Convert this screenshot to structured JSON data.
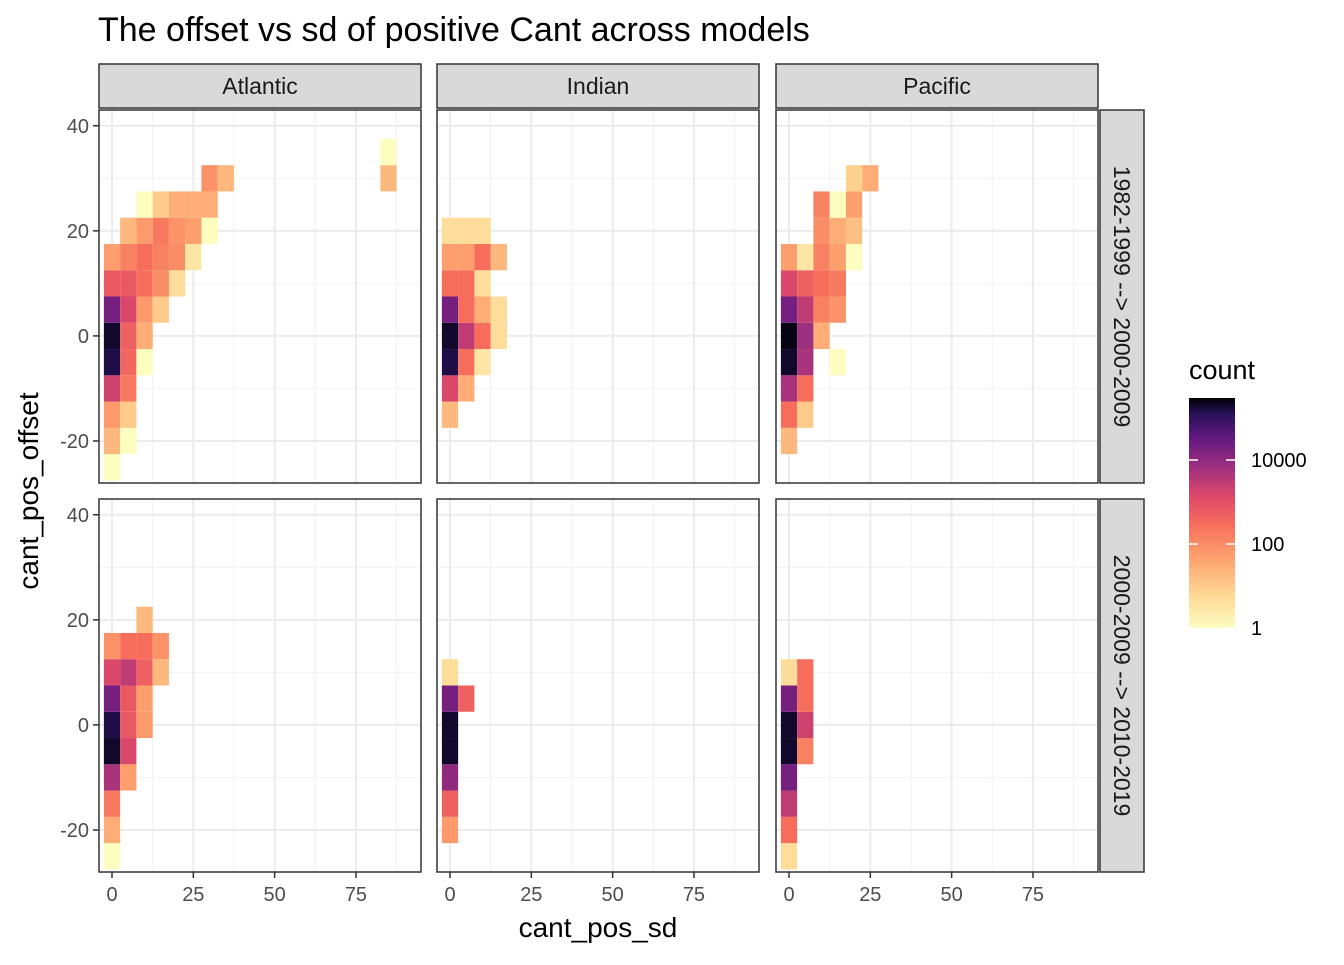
{
  "chart_data": {
    "type": "heatmap",
    "title": "The offset vs sd of positive Cant across models",
    "xlabel": "cant_pos_sd",
    "ylabel": "cant_pos_offset",
    "xlim": [
      -4,
      95
    ],
    "ylim": [
      -28,
      43
    ],
    "x_ticks": [
      0,
      25,
      50,
      75
    ],
    "x_tick_labels": [
      "0",
      "25",
      "50",
      "75"
    ],
    "y_ticks": [
      -20,
      0,
      20,
      40
    ],
    "y_tick_labels": [
      "-20",
      "0",
      "20",
      "40"
    ],
    "grid": true,
    "bin_width": {
      "x": 5,
      "y": 5
    },
    "columns": [
      "Atlantic",
      "Indian",
      "Pacific"
    ],
    "rows": [
      "1982-1999 --> 2000-2009",
      "2000-2009 --> 2010-2019"
    ],
    "legend": {
      "title": "count",
      "position": "right",
      "scale": "log10",
      "domain": [
        1,
        300000
      ],
      "breaks": [
        1,
        100,
        10000
      ],
      "break_labels": [
        "1",
        "100",
        "10000"
      ]
    },
    "panels": [
      {
        "column": "Atlantic",
        "row": "1982-1999 --> 2000-2009",
        "cells": [
          {
            "x": 0,
            "y": -25,
            "count": 1
          },
          {
            "x": 0,
            "y": -20,
            "count": 20
          },
          {
            "x": 0,
            "y": -15,
            "count": 60
          },
          {
            "x": 0,
            "y": -10,
            "count": 2000
          },
          {
            "x": 0,
            "y": -5,
            "count": 150000
          },
          {
            "x": 0,
            "y": 0,
            "count": 200000
          },
          {
            "x": 0,
            "y": 5,
            "count": 20000
          },
          {
            "x": 0,
            "y": 10,
            "count": 700
          },
          {
            "x": 0,
            "y": 15,
            "count": 50
          },
          {
            "x": 5,
            "y": -20,
            "count": 1
          },
          {
            "x": 5,
            "y": -15,
            "count": 10
          },
          {
            "x": 5,
            "y": -10,
            "count": 200
          },
          {
            "x": 5,
            "y": -5,
            "count": 400
          },
          {
            "x": 5,
            "y": 0,
            "count": 500
          },
          {
            "x": 5,
            "y": 5,
            "count": 1500
          },
          {
            "x": 5,
            "y": 10,
            "count": 700
          },
          {
            "x": 5,
            "y": 15,
            "count": 150
          },
          {
            "x": 5,
            "y": 20,
            "count": 20
          },
          {
            "x": 10,
            "y": -5,
            "count": 1
          },
          {
            "x": 10,
            "y": 0,
            "count": 30
          },
          {
            "x": 10,
            "y": 5,
            "count": 60
          },
          {
            "x": 10,
            "y": 10,
            "count": 300
          },
          {
            "x": 10,
            "y": 15,
            "count": 300
          },
          {
            "x": 10,
            "y": 20,
            "count": 60
          },
          {
            "x": 10,
            "y": 25,
            "count": 1
          },
          {
            "x": 15,
            "y": 5,
            "count": 10
          },
          {
            "x": 15,
            "y": 10,
            "count": 100
          },
          {
            "x": 15,
            "y": 15,
            "count": 150
          },
          {
            "x": 15,
            "y": 20,
            "count": 200
          },
          {
            "x": 15,
            "y": 25,
            "count": 10
          },
          {
            "x": 20,
            "y": 10,
            "count": 5
          },
          {
            "x": 20,
            "y": 15,
            "count": 100
          },
          {
            "x": 20,
            "y": 20,
            "count": 80
          },
          {
            "x": 20,
            "y": 25,
            "count": 30
          },
          {
            "x": 25,
            "y": 15,
            "count": 3
          },
          {
            "x": 25,
            "y": 20,
            "count": 50
          },
          {
            "x": 25,
            "y": 25,
            "count": 30
          },
          {
            "x": 30,
            "y": 20,
            "count": 1
          },
          {
            "x": 30,
            "y": 25,
            "count": 30
          },
          {
            "x": 30,
            "y": 30,
            "count": 80
          },
          {
            "x": 35,
            "y": 30,
            "count": 20
          },
          {
            "x": 85,
            "y": 30,
            "count": 20
          },
          {
            "x": 85,
            "y": 35,
            "count": 1
          }
        ]
      },
      {
        "column": "Indian",
        "row": "1982-1999 --> 2000-2009",
        "cells": [
          {
            "x": 0,
            "y": -15,
            "count": 20
          },
          {
            "x": 0,
            "y": -10,
            "count": 1500
          },
          {
            "x": 0,
            "y": -5,
            "count": 150000
          },
          {
            "x": 0,
            "y": 0,
            "count": 200000
          },
          {
            "x": 0,
            "y": 5,
            "count": 20000
          },
          {
            "x": 0,
            "y": 10,
            "count": 300
          },
          {
            "x": 0,
            "y": 15,
            "count": 50
          },
          {
            "x": 0,
            "y": 20,
            "count": 5
          },
          {
            "x": 5,
            "y": -10,
            "count": 30
          },
          {
            "x": 5,
            "y": -5,
            "count": 300
          },
          {
            "x": 5,
            "y": 0,
            "count": 3000
          },
          {
            "x": 5,
            "y": 5,
            "count": 300
          },
          {
            "x": 5,
            "y": 10,
            "count": 300
          },
          {
            "x": 5,
            "y": 15,
            "count": 50
          },
          {
            "x": 5,
            "y": 20,
            "count": 5
          },
          {
            "x": 10,
            "y": -5,
            "count": 3
          },
          {
            "x": 10,
            "y": 0,
            "count": 300
          },
          {
            "x": 10,
            "y": 5,
            "count": 30
          },
          {
            "x": 10,
            "y": 10,
            "count": 5
          },
          {
            "x": 10,
            "y": 15,
            "count": 300
          },
          {
            "x": 10,
            "y": 20,
            "count": 5
          },
          {
            "x": 15,
            "y": 0,
            "count": 5
          },
          {
            "x": 15,
            "y": 5,
            "count": 5
          },
          {
            "x": 15,
            "y": 15,
            "count": 20
          }
        ]
      },
      {
        "column": "Pacific",
        "row": "1982-1999 --> 2000-2009",
        "cells": [
          {
            "x": 0,
            "y": -20,
            "count": 20
          },
          {
            "x": 0,
            "y": -15,
            "count": 300
          },
          {
            "x": 0,
            "y": -10,
            "count": 5000
          },
          {
            "x": 0,
            "y": -5,
            "count": 200000
          },
          {
            "x": 0,
            "y": 0,
            "count": 250000
          },
          {
            "x": 0,
            "y": 5,
            "count": 20000
          },
          {
            "x": 0,
            "y": 10,
            "count": 1500
          },
          {
            "x": 0,
            "y": 15,
            "count": 50
          },
          {
            "x": 5,
            "y": -15,
            "count": 10
          },
          {
            "x": 5,
            "y": -10,
            "count": 300
          },
          {
            "x": 5,
            "y": -5,
            "count": 5000
          },
          {
            "x": 5,
            "y": 0,
            "count": 7000
          },
          {
            "x": 5,
            "y": 5,
            "count": 3000
          },
          {
            "x": 5,
            "y": 10,
            "count": 500
          },
          {
            "x": 5,
            "y": 15,
            "count": 3
          },
          {
            "x": 10,
            "y": 0,
            "count": 30
          },
          {
            "x": 10,
            "y": 5,
            "count": 150
          },
          {
            "x": 10,
            "y": 10,
            "count": 300
          },
          {
            "x": 10,
            "y": 15,
            "count": 150
          },
          {
            "x": 10,
            "y": 20,
            "count": 100
          },
          {
            "x": 10,
            "y": 25,
            "count": 150
          },
          {
            "x": 15,
            "y": -5,
            "count": 1
          },
          {
            "x": 15,
            "y": 5,
            "count": 80
          },
          {
            "x": 15,
            "y": 10,
            "count": 200
          },
          {
            "x": 15,
            "y": 15,
            "count": 50
          },
          {
            "x": 15,
            "y": 20,
            "count": 30
          },
          {
            "x": 15,
            "y": 25,
            "count": 1
          },
          {
            "x": 20,
            "y": 15,
            "count": 1
          },
          {
            "x": 20,
            "y": 20,
            "count": 15
          },
          {
            "x": 20,
            "y": 25,
            "count": 50
          },
          {
            "x": 20,
            "y": 30,
            "count": 8
          },
          {
            "x": 25,
            "y": 30,
            "count": 30
          }
        ]
      },
      {
        "column": "Atlantic",
        "row": "2000-2009 --> 2010-2019",
        "cells": [
          {
            "x": 0,
            "y": -25,
            "count": 1
          },
          {
            "x": 0,
            "y": -20,
            "count": 30
          },
          {
            "x": 0,
            "y": -15,
            "count": 200
          },
          {
            "x": 0,
            "y": -10,
            "count": 5000
          },
          {
            "x": 0,
            "y": -5,
            "count": 200000
          },
          {
            "x": 0,
            "y": 0,
            "count": 150000
          },
          {
            "x": 0,
            "y": 5,
            "count": 20000
          },
          {
            "x": 0,
            "y": 10,
            "count": 1500
          },
          {
            "x": 0,
            "y": 15,
            "count": 80
          },
          {
            "x": 5,
            "y": -10,
            "count": 50
          },
          {
            "x": 5,
            "y": -5,
            "count": 1500
          },
          {
            "x": 5,
            "y": 0,
            "count": 700
          },
          {
            "x": 5,
            "y": 5,
            "count": 700
          },
          {
            "x": 5,
            "y": 10,
            "count": 3000
          },
          {
            "x": 5,
            "y": 15,
            "count": 300
          },
          {
            "x": 10,
            "y": 0,
            "count": 60
          },
          {
            "x": 10,
            "y": 5,
            "count": 50
          },
          {
            "x": 10,
            "y": 10,
            "count": 500
          },
          {
            "x": 10,
            "y": 15,
            "count": 300
          },
          {
            "x": 10,
            "y": 20,
            "count": 20
          },
          {
            "x": 15,
            "y": 10,
            "count": 20
          },
          {
            "x": 15,
            "y": 15,
            "count": 80
          }
        ]
      },
      {
        "column": "Indian",
        "row": "2000-2009 --> 2010-2019",
        "cells": [
          {
            "x": 0,
            "y": -20,
            "count": 60
          },
          {
            "x": 0,
            "y": -15,
            "count": 500
          },
          {
            "x": 0,
            "y": -10,
            "count": 10000
          },
          {
            "x": 0,
            "y": -5,
            "count": 200000
          },
          {
            "x": 0,
            "y": 0,
            "count": 200000
          },
          {
            "x": 0,
            "y": 5,
            "count": 20000
          },
          {
            "x": 0,
            "y": 10,
            "count": 5
          },
          {
            "x": 5,
            "y": 5,
            "count": 500
          }
        ]
      },
      {
        "column": "Pacific",
        "row": "2000-2009 --> 2010-2019",
        "cells": [
          {
            "x": 0,
            "y": -25,
            "count": 5
          },
          {
            "x": 0,
            "y": -20,
            "count": 300
          },
          {
            "x": 0,
            "y": -15,
            "count": 3000
          },
          {
            "x": 0,
            "y": -10,
            "count": 20000
          },
          {
            "x": 0,
            "y": -5,
            "count": 200000
          },
          {
            "x": 0,
            "y": 0,
            "count": 200000
          },
          {
            "x": 0,
            "y": 5,
            "count": 20000
          },
          {
            "x": 0,
            "y": 10,
            "count": 5
          },
          {
            "x": 5,
            "y": -5,
            "count": 150
          },
          {
            "x": 5,
            "y": 0,
            "count": 2000
          },
          {
            "x": 5,
            "y": 5,
            "count": 300
          },
          {
            "x": 5,
            "y": 10,
            "count": 300
          }
        ]
      }
    ]
  }
}
